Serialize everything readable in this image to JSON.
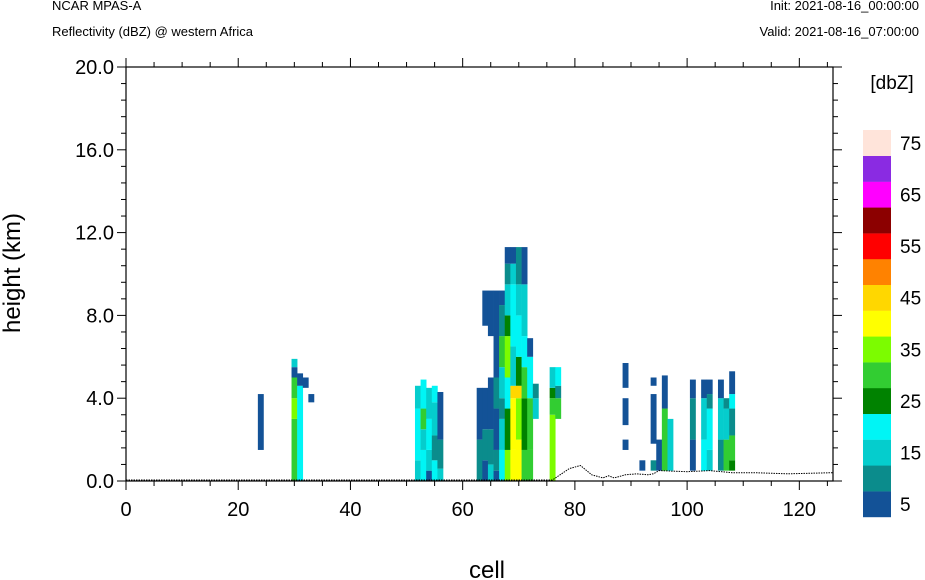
{
  "header": {
    "model": "NCAR MPAS-A",
    "field": "Reflectivity (dBZ) @ western Africa",
    "init": "Init: 2021-08-16_00:00:00",
    "valid": "Valid: 2021-08-16_07:00:00"
  },
  "chart_data": {
    "type": "heatmap",
    "xlabel": "cell",
    "ylabel": "height (km)",
    "xlim": [
      0,
      126
    ],
    "ylim": [
      0,
      20
    ],
    "x_ticks": [
      "0",
      "20",
      "40",
      "60",
      "80",
      "100",
      "120"
    ],
    "y_ticks": [
      "0.0",
      "4.0",
      "8.0",
      "12.0",
      "16.0",
      "20.0"
    ],
    "colorbar": {
      "unit": "[dbZ]",
      "levels": [
        5,
        10,
        15,
        20,
        25,
        30,
        35,
        40,
        45,
        50,
        55,
        60,
        65,
        70,
        75
      ],
      "labels": [
        "5",
        "15",
        "25",
        "35",
        "45",
        "55",
        "65",
        "75"
      ],
      "colors": [
        "#135297",
        "#0B8C8C",
        "#05CDCD",
        "#00F5F5",
        "#008200",
        "#32CD32",
        "#7CFC00",
        "#FFFF00",
        "#FFD700",
        "#FF8200",
        "#FF0000",
        "#8C0000",
        "#FF00FF",
        "#8A2BE2",
        "#FFE4DA"
      ]
    },
    "columns": [
      {
        "cell": 24,
        "cells": [
          {
            "z0": 1.5,
            "z1": 4.2,
            "dbz": 5
          }
        ]
      },
      {
        "cell": 30,
        "cells": [
          {
            "z0": 0,
            "z1": 3.0,
            "dbz": 30
          },
          {
            "z0": 3.0,
            "z1": 4.0,
            "dbz": 35
          },
          {
            "z0": 4.0,
            "z1": 5.0,
            "dbz": 30
          },
          {
            "z0": 5.0,
            "z1": 5.5,
            "dbz": 5
          },
          {
            "z0": 5.5,
            "z1": 5.9,
            "dbz": 15
          }
        ]
      },
      {
        "cell": 31,
        "cells": [
          {
            "z0": 0,
            "z1": 4.6,
            "dbz": 20
          },
          {
            "z0": 4.6,
            "z1": 5.2,
            "dbz": 5
          }
        ]
      },
      {
        "cell": 32,
        "cells": [
          {
            "z0": 4.5,
            "z1": 5.0,
            "dbz": 5
          }
        ]
      },
      {
        "cell": 33,
        "cells": [
          {
            "z0": 3.8,
            "z1": 4.2,
            "dbz": 5
          }
        ]
      },
      {
        "cell": 52,
        "cells": [
          {
            "z0": 0,
            "z1": 1.0,
            "dbz": 15
          },
          {
            "z0": 1.0,
            "z1": 3.5,
            "dbz": 20
          },
          {
            "z0": 3.5,
            "z1": 4.6,
            "dbz": 15
          }
        ]
      },
      {
        "cell": 53,
        "cells": [
          {
            "z0": 0,
            "z1": 1.5,
            "dbz": 20
          },
          {
            "z0": 1.5,
            "z1": 2.5,
            "dbz": 15
          },
          {
            "z0": 2.5,
            "z1": 3.5,
            "dbz": 30
          },
          {
            "z0": 3.5,
            "z1": 4.9,
            "dbz": 20
          }
        ]
      },
      {
        "cell": 54,
        "cells": [
          {
            "z0": 0,
            "z1": 0.5,
            "dbz": 5
          },
          {
            "z0": 0.5,
            "z1": 1.5,
            "dbz": 15
          },
          {
            "z0": 1.5,
            "z1": 3.0,
            "dbz": 20
          },
          {
            "z0": 3.0,
            "z1": 4.5,
            "dbz": 15
          }
        ]
      },
      {
        "cell": 55,
        "cells": [
          {
            "z0": 0,
            "z1": 1.0,
            "dbz": 20
          },
          {
            "z0": 1.0,
            "z1": 2.2,
            "dbz": 10
          },
          {
            "z0": 2.2,
            "z1": 3.8,
            "dbz": 15
          },
          {
            "z0": 3.8,
            "z1": 4.6,
            "dbz": 20
          }
        ]
      },
      {
        "cell": 56,
        "cells": [
          {
            "z0": 0,
            "z1": 0.6,
            "dbz": 15
          },
          {
            "z0": 0.6,
            "z1": 2.0,
            "dbz": 10
          },
          {
            "z0": 2.0,
            "z1": 4.3,
            "dbz": 5
          }
        ]
      },
      {
        "cell": 63,
        "cells": [
          {
            "z0": 0,
            "z1": 2.0,
            "dbz": 10
          },
          {
            "z0": 2.0,
            "z1": 4.5,
            "dbz": 5
          }
        ]
      },
      {
        "cell": 64,
        "cells": [
          {
            "z0": 0,
            "z1": 1.0,
            "dbz": 5
          },
          {
            "z0": 1.0,
            "z1": 2.5,
            "dbz": 10
          },
          {
            "z0": 2.5,
            "z1": 4.5,
            "dbz": 5
          },
          {
            "z0": 7.5,
            "z1": 9.2,
            "dbz": 5
          }
        ]
      },
      {
        "cell": 65,
        "cells": [
          {
            "z0": 0,
            "z1": 0.8,
            "dbz": 15
          },
          {
            "z0": 0.8,
            "z1": 2.5,
            "dbz": 10
          },
          {
            "z0": 2.5,
            "z1": 5.0,
            "dbz": 5
          },
          {
            "z0": 7.0,
            "z1": 9.2,
            "dbz": 5
          }
        ]
      },
      {
        "cell": 66,
        "cells": [
          {
            "z0": 0,
            "z1": 0.5,
            "dbz": 5
          },
          {
            "z0": 0.5,
            "z1": 1.5,
            "dbz": 10
          },
          {
            "z0": 1.5,
            "z1": 3.5,
            "dbz": 5
          },
          {
            "z0": 3.5,
            "z1": 5.0,
            "dbz": 10
          },
          {
            "z0": 5.0,
            "z1": 9.2,
            "dbz": 5
          }
        ]
      },
      {
        "cell": 67,
        "cells": [
          {
            "z0": 0,
            "z1": 1.5,
            "dbz": 20
          },
          {
            "z0": 1.5,
            "z1": 3.0,
            "dbz": 15
          },
          {
            "z0": 3.0,
            "z1": 4.0,
            "dbz": 10
          },
          {
            "z0": 4.0,
            "z1": 5.5,
            "dbz": 15
          },
          {
            "z0": 5.5,
            "z1": 7.0,
            "dbz": 30
          },
          {
            "z0": 7.0,
            "z1": 8.5,
            "dbz": 10
          },
          {
            "z0": 8.5,
            "z1": 9.2,
            "dbz": 5
          }
        ]
      },
      {
        "cell": 68,
        "cells": [
          {
            "z0": 0,
            "z1": 1.5,
            "dbz": 35
          },
          {
            "z0": 1.5,
            "z1": 3.5,
            "dbz": 25
          },
          {
            "z0": 3.5,
            "z1": 5.0,
            "dbz": 20
          },
          {
            "z0": 5.0,
            "z1": 7.0,
            "dbz": 35
          },
          {
            "z0": 7.0,
            "z1": 8.0,
            "dbz": 25
          },
          {
            "z0": 8.0,
            "z1": 9.5,
            "dbz": 15
          },
          {
            "z0": 9.5,
            "z1": 10.5,
            "dbz": 10
          },
          {
            "z0": 10.5,
            "z1": 11.3,
            "dbz": 5
          }
        ]
      },
      {
        "cell": 69,
        "cells": [
          {
            "z0": 0,
            "z1": 1.5,
            "dbz": 40
          },
          {
            "z0": 1.5,
            "z1": 4.0,
            "dbz": 40
          },
          {
            "z0": 4.0,
            "z1": 4.6,
            "dbz": 45
          },
          {
            "z0": 4.6,
            "z1": 6.5,
            "dbz": 15
          },
          {
            "z0": 6.5,
            "z1": 9.5,
            "dbz": 20
          },
          {
            "z0": 9.5,
            "z1": 10.5,
            "dbz": 15
          },
          {
            "z0": 10.5,
            "z1": 11.3,
            "dbz": 5
          }
        ]
      },
      {
        "cell": 70,
        "cells": [
          {
            "z0": 0,
            "z1": 2.0,
            "dbz": 40
          },
          {
            "z0": 2.0,
            "z1": 4.0,
            "dbz": 35
          },
          {
            "z0": 4.0,
            "z1": 4.6,
            "dbz": 45
          },
          {
            "z0": 4.6,
            "z1": 6.0,
            "dbz": 25
          },
          {
            "z0": 6.0,
            "z1": 8.0,
            "dbz": 20
          },
          {
            "z0": 8.0,
            "z1": 9.5,
            "dbz": 15
          },
          {
            "z0": 9.5,
            "z1": 11.3,
            "dbz": 10
          }
        ]
      },
      {
        "cell": 71,
        "cells": [
          {
            "z0": 0,
            "z1": 1.5,
            "dbz": 30
          },
          {
            "z0": 1.5,
            "z1": 4.0,
            "dbz": 25
          },
          {
            "z0": 4.0,
            "z1": 5.5,
            "dbz": 30
          },
          {
            "z0": 5.5,
            "z1": 7.0,
            "dbz": 20
          },
          {
            "z0": 7.0,
            "z1": 9.5,
            "dbz": 15
          },
          {
            "z0": 9.5,
            "z1": 11.3,
            "dbz": 5
          }
        ]
      },
      {
        "cell": 72,
        "cells": [
          {
            "z0": 0,
            "z1": 1.5,
            "dbz": 30
          },
          {
            "z0": 1.5,
            "z1": 4.0,
            "dbz": 30
          },
          {
            "z0": 4.0,
            "z1": 6.0,
            "dbz": 20
          },
          {
            "z0": 6.0,
            "z1": 6.9,
            "dbz": 5
          }
        ]
      },
      {
        "cell": 73,
        "cells": [
          {
            "z0": 3.0,
            "z1": 4.0,
            "dbz": 15
          },
          {
            "z0": 4.0,
            "z1": 4.7,
            "dbz": 10
          }
        ]
      },
      {
        "cell": 76,
        "cells": [
          {
            "z0": 0,
            "z1": 3.2,
            "dbz": 35
          },
          {
            "z0": 3.2,
            "z1": 4.0,
            "dbz": 30
          },
          {
            "z0": 4.0,
            "z1": 4.5,
            "dbz": 25
          },
          {
            "z0": 4.5,
            "z1": 5.5,
            "dbz": 15
          }
        ]
      },
      {
        "cell": 77,
        "cells": [
          {
            "z0": 3.0,
            "z1": 4.0,
            "dbz": 30
          },
          {
            "z0": 4.0,
            "z1": 4.6,
            "dbz": 10
          },
          {
            "z0": 4.6,
            "z1": 5.5,
            "dbz": 20
          }
        ]
      },
      {
        "cell": 89,
        "cells": [
          {
            "z0": 1.5,
            "z1": 2.0,
            "dbz": 5
          },
          {
            "z0": 2.7,
            "z1": 4.0,
            "dbz": 5
          },
          {
            "z0": 4.5,
            "z1": 5.7,
            "dbz": 5
          }
        ]
      },
      {
        "cell": 92,
        "cells": [
          {
            "z0": 0.5,
            "z1": 1.0,
            "dbz": 5
          }
        ]
      },
      {
        "cell": 94,
        "cells": [
          {
            "z0": 0.5,
            "z1": 1.0,
            "dbz": 10
          },
          {
            "z0": 1.8,
            "z1": 4.2,
            "dbz": 5
          },
          {
            "z0": 4.6,
            "z1": 5.0,
            "dbz": 5
          }
        ]
      },
      {
        "cell": 95,
        "cells": [
          {
            "z0": 0.5,
            "z1": 2.0,
            "dbz": 5
          }
        ]
      },
      {
        "cell": 96,
        "cells": [
          {
            "z0": 0.5,
            "z1": 3.5,
            "dbz": 30
          },
          {
            "z0": 3.5,
            "z1": 5.1,
            "dbz": 5
          }
        ]
      },
      {
        "cell": 97,
        "cells": [
          {
            "z0": 0.5,
            "z1": 3.0,
            "dbz": 15
          }
        ]
      },
      {
        "cell": 101,
        "cells": [
          {
            "z0": 0.5,
            "z1": 2.0,
            "dbz": 5
          },
          {
            "z0": 2.0,
            "z1": 4.0,
            "dbz": 10
          },
          {
            "z0": 4.0,
            "z1": 4.9,
            "dbz": 5
          }
        ]
      },
      {
        "cell": 103,
        "cells": [
          {
            "z0": 0.5,
            "z1": 2.0,
            "dbz": 20
          },
          {
            "z0": 2.0,
            "z1": 4.0,
            "dbz": 15
          },
          {
            "z0": 4.0,
            "z1": 4.9,
            "dbz": 5
          }
        ]
      },
      {
        "cell": 104,
        "cells": [
          {
            "z0": 0.5,
            "z1": 1.5,
            "dbz": 15
          },
          {
            "z0": 1.5,
            "z1": 3.5,
            "dbz": 20
          },
          {
            "z0": 3.5,
            "z1": 4.2,
            "dbz": 10
          },
          {
            "z0": 4.2,
            "z1": 4.9,
            "dbz": 5
          }
        ]
      },
      {
        "cell": 106,
        "cells": [
          {
            "z0": 0.5,
            "z1": 2.0,
            "dbz": 10
          },
          {
            "z0": 2.0,
            "z1": 4.0,
            "dbz": 15
          },
          {
            "z0": 4.0,
            "z1": 4.9,
            "dbz": 5
          }
        ]
      },
      {
        "cell": 107,
        "cells": [
          {
            "z0": 0.5,
            "z1": 2.0,
            "dbz": 30
          },
          {
            "z0": 2.0,
            "z1": 3.5,
            "dbz": 15
          },
          {
            "z0": 3.5,
            "z1": 4.0,
            "dbz": 10
          }
        ]
      },
      {
        "cell": 108,
        "cells": [
          {
            "z0": 0.5,
            "z1": 1.0,
            "dbz": 25
          },
          {
            "z0": 1.0,
            "z1": 2.2,
            "dbz": 30
          },
          {
            "z0": 2.2,
            "z1": 3.5,
            "dbz": 10
          },
          {
            "z0": 3.5,
            "z1": 4.2,
            "dbz": 20
          },
          {
            "z0": 4.2,
            "z1": 5.3,
            "dbz": 5
          }
        ]
      }
    ],
    "terrain": [
      [
        0,
        0.05
      ],
      [
        76,
        0.05
      ],
      [
        79,
        0.6
      ],
      [
        81,
        0.75
      ],
      [
        83,
        0.3
      ],
      [
        85,
        0.15
      ],
      [
        86,
        0.25
      ],
      [
        87,
        0.15
      ],
      [
        89,
        0.3
      ],
      [
        91,
        0.35
      ],
      [
        93,
        0.3
      ],
      [
        94,
        0.35
      ],
      [
        95,
        0.5
      ],
      [
        100,
        0.45
      ],
      [
        104,
        0.5
      ],
      [
        108,
        0.4
      ],
      [
        112,
        0.4
      ],
      [
        118,
        0.35
      ],
      [
        126,
        0.4
      ]
    ]
  }
}
